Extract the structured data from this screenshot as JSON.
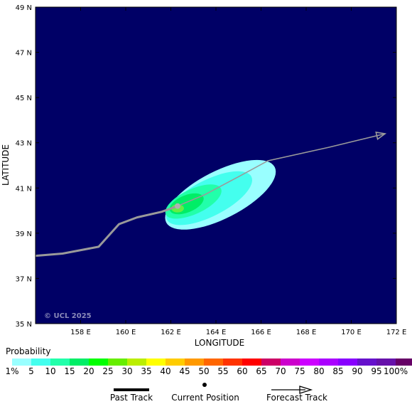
{
  "map": {
    "xlabel": "LONGITUDE",
    "ylabel": "LATITUDE",
    "lon_range": [
      156,
      172
    ],
    "lat_range": [
      35,
      49
    ],
    "x_ticks": [
      "158 E",
      "160 E",
      "162 E",
      "164 E",
      "166 E",
      "168 E",
      "170 E",
      "172 E"
    ],
    "x_tick_values": [
      158,
      160,
      162,
      164,
      166,
      168,
      170,
      172
    ],
    "y_ticks": [
      "49 N",
      "47 N",
      "45 N",
      "43 N",
      "41 N",
      "39 N",
      "37 N",
      "35 N"
    ],
    "y_tick_values": [
      49,
      47,
      45,
      43,
      41,
      39,
      37,
      35
    ],
    "copyright": "© UCL 2025",
    "background_color": "#000066",
    "past_track": [
      [
        156.0,
        38.0
      ],
      [
        157.2,
        38.1
      ],
      [
        158.8,
        38.4
      ],
      [
        159.7,
        39.4
      ],
      [
        160.5,
        39.7
      ],
      [
        161.6,
        39.95
      ],
      [
        162.3,
        40.2
      ]
    ],
    "forecast_track": [
      [
        162.3,
        40.2
      ],
      [
        163.5,
        40.7
      ],
      [
        165.0,
        41.5
      ],
      [
        166.3,
        42.2
      ],
      [
        169.0,
        42.8
      ],
      [
        171.5,
        43.4
      ]
    ],
    "current_position": [
      162.3,
      40.2
    ],
    "track_color": "#9a9a9a",
    "probability_zones": [
      {
        "percent": 1,
        "color": "#99ffff",
        "center": [
          164.2,
          40.7
        ],
        "rx": 2.7,
        "ry": 1.05,
        "angle": -27
      },
      {
        "percent": 5,
        "color": "#44ffee",
        "center": [
          163.7,
          40.55
        ],
        "rx": 2.1,
        "ry": 0.8,
        "angle": -27
      },
      {
        "percent": 10,
        "color": "#22ffaa",
        "center": [
          163.0,
          40.4
        ],
        "rx": 1.35,
        "ry": 0.55,
        "angle": -25
      },
      {
        "percent": 15,
        "color": "#00ee66",
        "center": [
          162.7,
          40.3
        ],
        "rx": 0.8,
        "ry": 0.38,
        "angle": -22
      },
      {
        "percent": 20,
        "color": "#66ee44",
        "center": [
          162.3,
          40.1
        ],
        "rx": 0.28,
        "ry": 0.18,
        "angle": 0
      }
    ]
  },
  "legend": {
    "title": "Probability",
    "colors": [
      "#99ffff",
      "#44ffee",
      "#22ffaa",
      "#00ee66",
      "#00ff00",
      "#66ee00",
      "#bbee00",
      "#ffff00",
      "#ffcc00",
      "#ff9900",
      "#ff6600",
      "#ff3300",
      "#ff0000",
      "#cc0066",
      "#cc00cc",
      "#cc00ff",
      "#aa00ff",
      "#8800ff",
      "#6611cc",
      "#6611aa",
      "#660066"
    ],
    "labels": [
      "1%",
      "5",
      "10",
      "15",
      "20",
      "25",
      "30",
      "35",
      "40",
      "45",
      "50",
      "55",
      "60",
      "65",
      "70",
      "75",
      "80",
      "85",
      "90",
      "95",
      "100%"
    ],
    "past_track": "Past Track",
    "current_position": "Current Position",
    "forecast_track": "Forecast Track"
  }
}
